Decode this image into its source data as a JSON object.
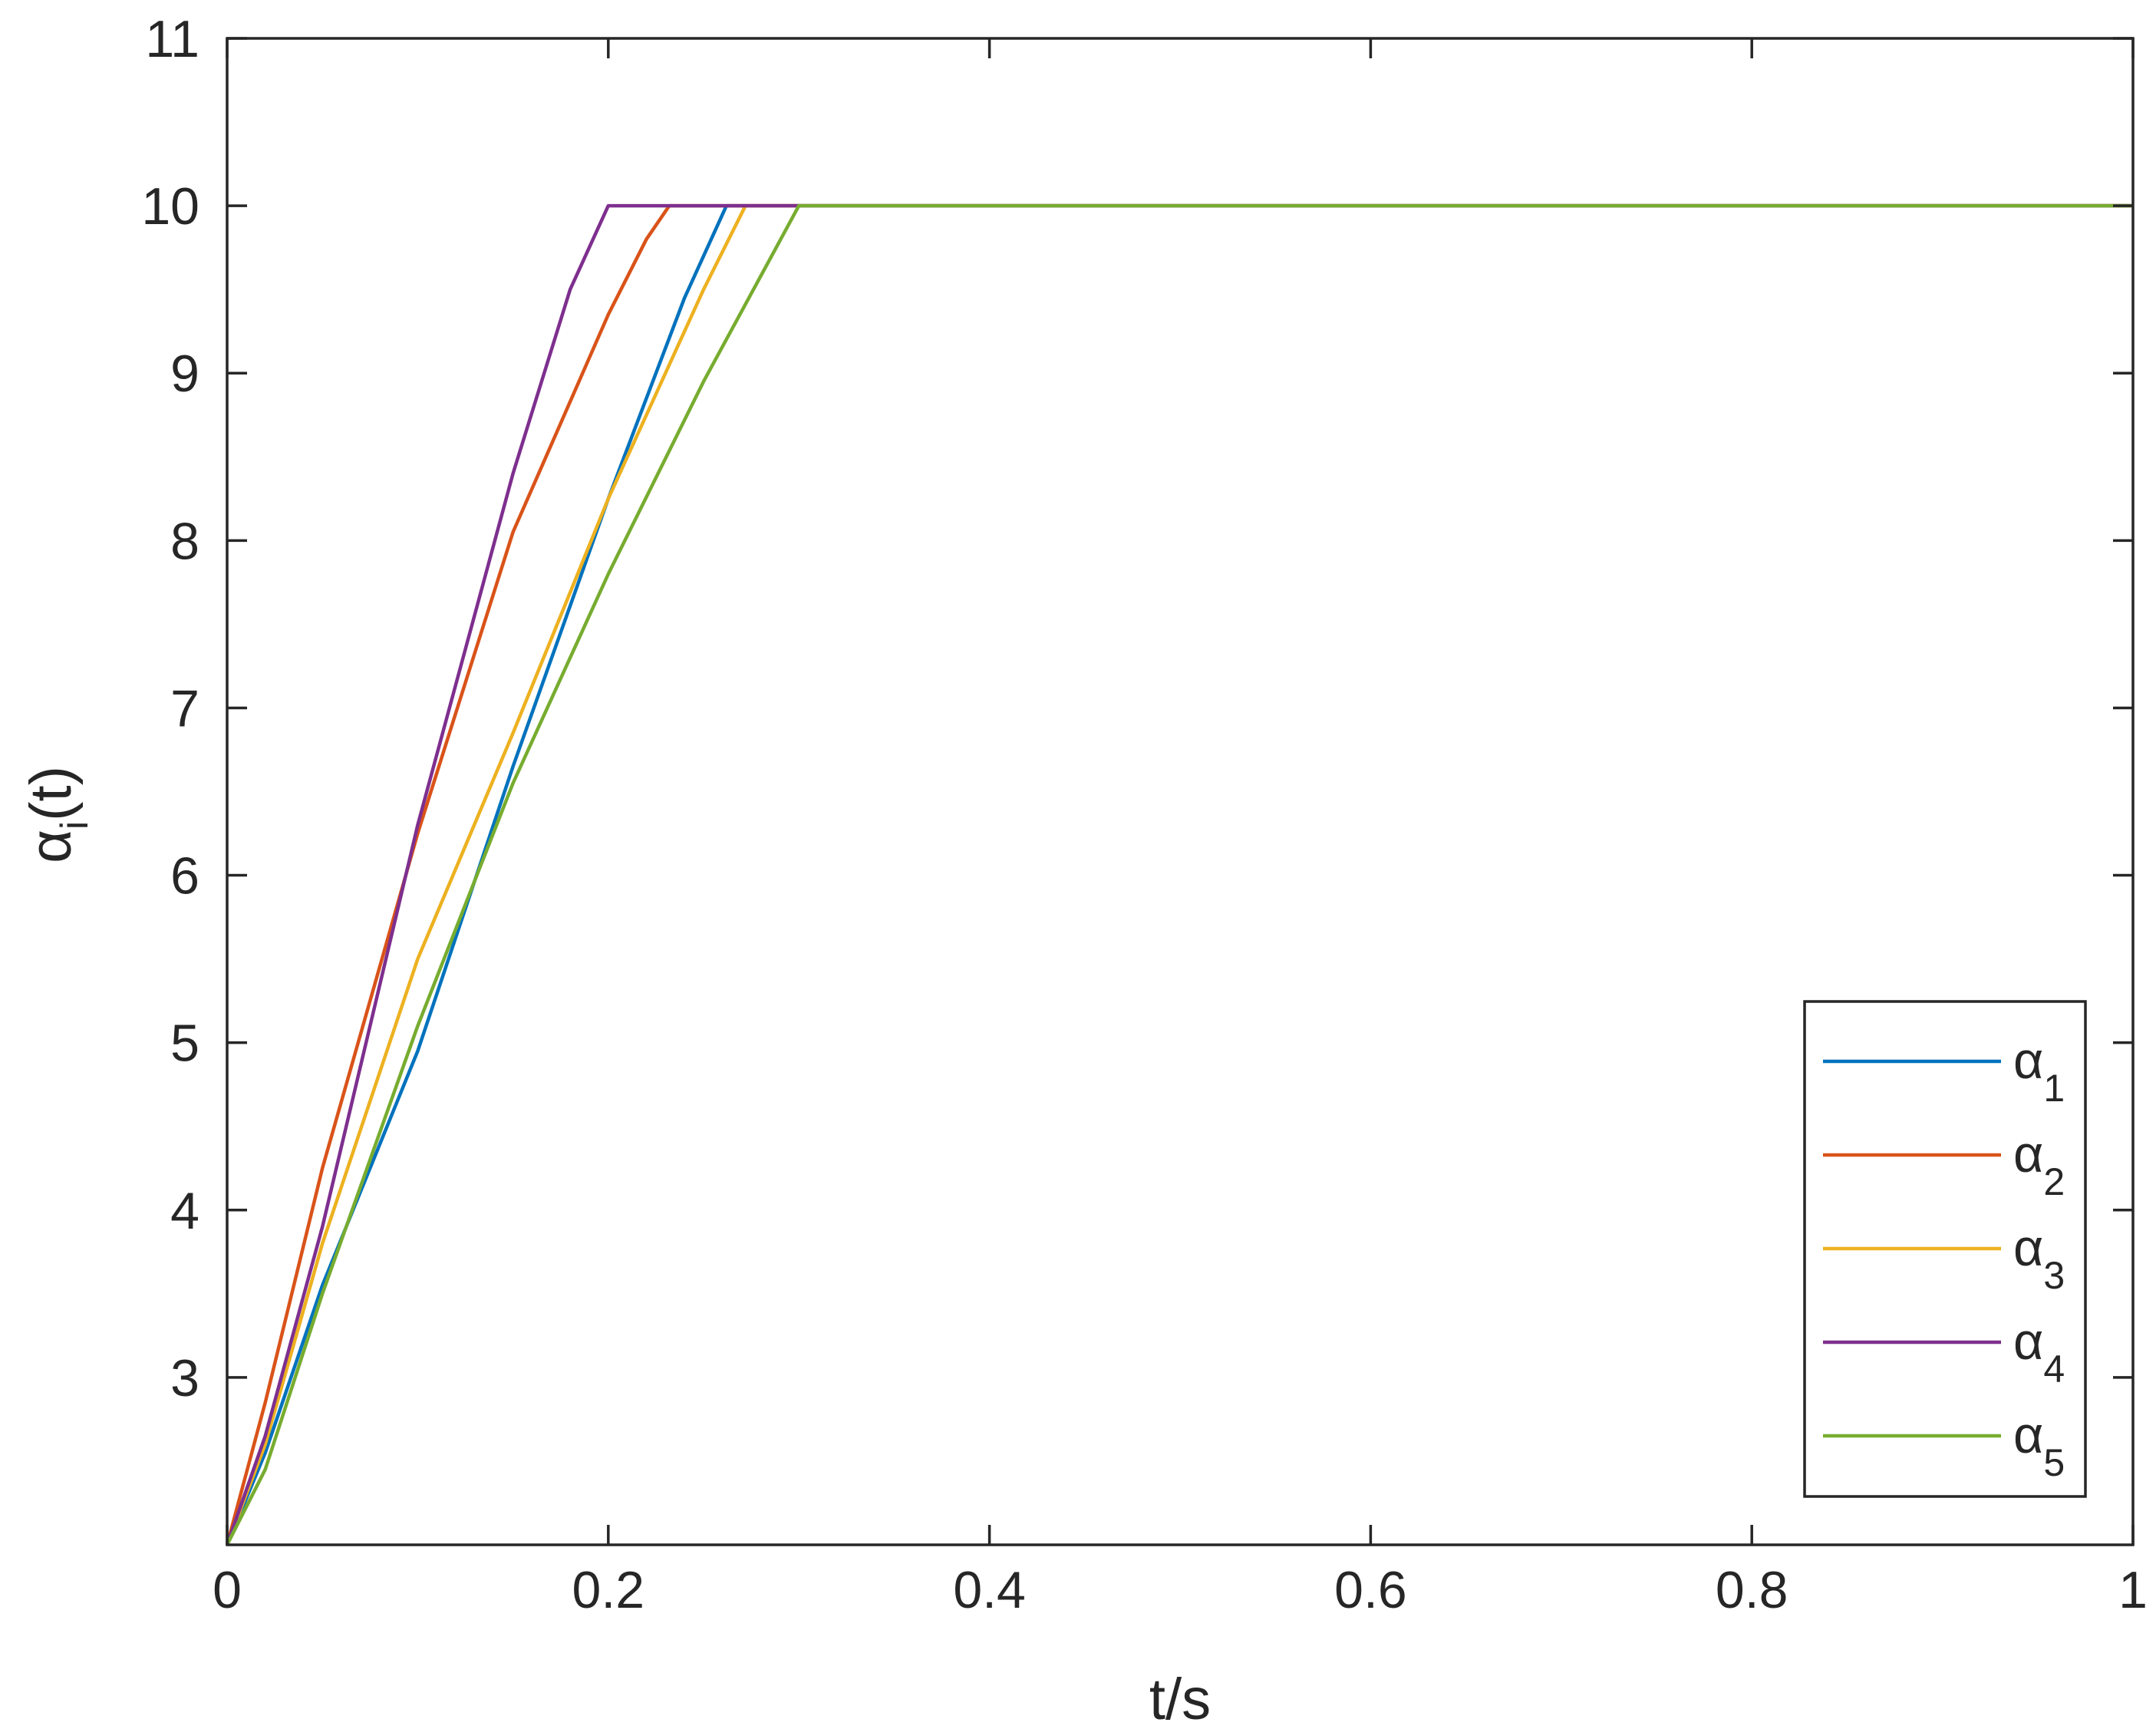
{
  "chart_data": {
    "type": "line",
    "title": "",
    "xlabel": "t/s",
    "ylabel": {
      "base": "α",
      "sub": "i",
      "suffix": "(t)"
    },
    "xlim": [
      0,
      1
    ],
    "ylim": [
      2,
      11
    ],
    "xticks": [
      0,
      0.2,
      0.4,
      0.6,
      0.8,
      1
    ],
    "xtick_labels": [
      "0",
      "0.2",
      "0.4",
      "0.6",
      "0.8",
      "1"
    ],
    "yticks": [
      3,
      4,
      5,
      6,
      7,
      8,
      9,
      10,
      11
    ],
    "ytick_labels": [
      "3",
      "4",
      "5",
      "6",
      "7",
      "8",
      "9",
      "10",
      "11"
    ],
    "grid": false,
    "legend_position": "lower-right",
    "series": [
      {
        "name": "α",
        "sub": "1",
        "color": "#0072BD",
        "points": [
          [
            0,
            2
          ],
          [
            0.02,
            2.55
          ],
          [
            0.05,
            3.55
          ],
          [
            0.1,
            4.95
          ],
          [
            0.15,
            6.65
          ],
          [
            0.2,
            8.25
          ],
          [
            0.24,
            9.45
          ],
          [
            0.262,
            10
          ],
          [
            0.3,
            10
          ],
          [
            1,
            10
          ]
        ]
      },
      {
        "name": "α",
        "sub": "2",
        "color": "#D95319",
        "points": [
          [
            0,
            2
          ],
          [
            0.02,
            2.85
          ],
          [
            0.05,
            4.25
          ],
          [
            0.1,
            6.25
          ],
          [
            0.15,
            8.05
          ],
          [
            0.2,
            9.35
          ],
          [
            0.22,
            9.8
          ],
          [
            0.232,
            10
          ],
          [
            0.3,
            10
          ],
          [
            1,
            10
          ]
        ]
      },
      {
        "name": "α",
        "sub": "3",
        "color": "#EDB120",
        "points": [
          [
            0,
            2
          ],
          [
            0.02,
            2.6
          ],
          [
            0.05,
            3.8
          ],
          [
            0.1,
            5.5
          ],
          [
            0.15,
            6.85
          ],
          [
            0.2,
            8.25
          ],
          [
            0.25,
            9.5
          ],
          [
            0.272,
            10
          ],
          [
            0.3,
            10
          ],
          [
            1,
            10
          ]
        ]
      },
      {
        "name": "α",
        "sub": "4",
        "color": "#7E2F8E",
        "points": [
          [
            0,
            2
          ],
          [
            0.02,
            2.65
          ],
          [
            0.05,
            3.9
          ],
          [
            0.1,
            6.3
          ],
          [
            0.15,
            8.4
          ],
          [
            0.18,
            9.5
          ],
          [
            0.2,
            10
          ],
          [
            0.3,
            10
          ],
          [
            1,
            10
          ]
        ]
      },
      {
        "name": "α",
        "sub": "5",
        "color": "#77AC30",
        "points": [
          [
            0,
            2
          ],
          [
            0.02,
            2.45
          ],
          [
            0.05,
            3.5
          ],
          [
            0.1,
            5.1
          ],
          [
            0.15,
            6.55
          ],
          [
            0.2,
            7.8
          ],
          [
            0.25,
            8.95
          ],
          [
            0.3,
            10
          ],
          [
            0.35,
            10
          ],
          [
            1,
            10
          ]
        ]
      }
    ]
  }
}
